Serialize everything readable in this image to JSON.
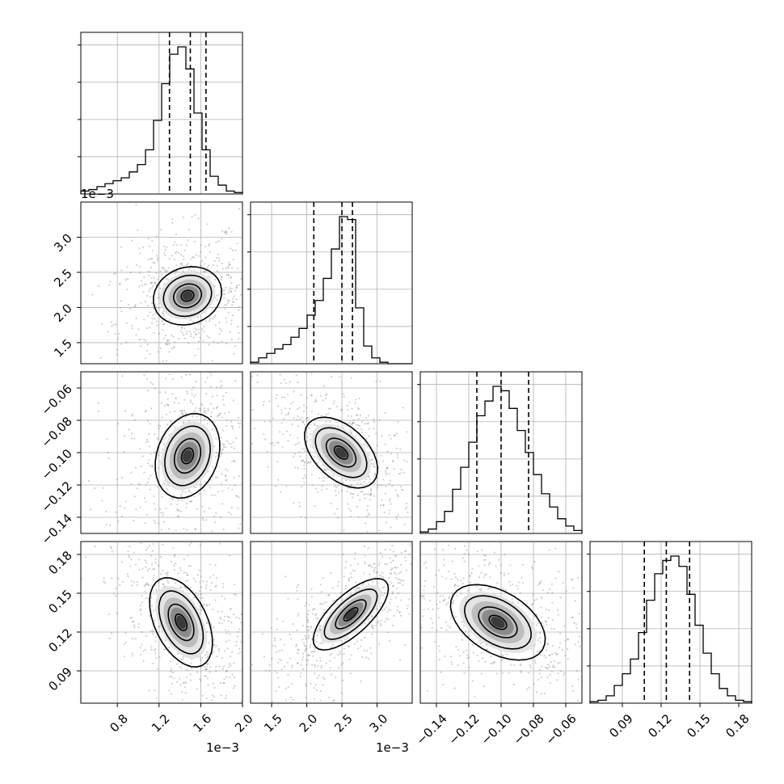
{
  "chart_data": {
    "type": "corner",
    "grid": true,
    "parameters": [
      {
        "range": [
          0.45,
          2.0
        ],
        "ticks": [
          0.8,
          1.2,
          1.6,
          2.0
        ],
        "tick_labels": [
          "0.8",
          "1.2",
          "1.6",
          "2.0"
        ],
        "offset_label": "1e−3",
        "quantiles": [
          1.3,
          1.5,
          1.65
        ],
        "hist_counts": [
          0.02,
          0.03,
          0.05,
          0.07,
          0.09,
          0.11,
          0.15,
          0.2,
          0.3,
          0.5,
          0.75,
          0.95,
          1.0,
          0.85,
          0.55,
          0.3,
          0.12,
          0.06,
          0.02,
          0.01
        ]
      },
      {
        "range": [
          1.2,
          3.5
        ],
        "ticks": [
          1.5,
          2.0,
          2.5,
          3.0
        ],
        "tick_labels": [
          "1.5",
          "2.0",
          "2.5",
          "3.0"
        ],
        "offset_label": "1e−3",
        "quantiles": [
          2.1,
          2.5,
          2.65
        ],
        "hist_counts": [
          0.01,
          0.04,
          0.07,
          0.1,
          0.13,
          0.18,
          0.24,
          0.33,
          0.43,
          0.58,
          0.78,
          1.0,
          0.98,
          0.38,
          0.12,
          0.04,
          0.01,
          0.0,
          0.0,
          0.0
        ]
      },
      {
        "range": [
          -0.15,
          -0.05
        ],
        "ticks": [
          -0.14,
          -0.12,
          -0.1,
          -0.08,
          -0.06
        ],
        "tick_labels": [
          "−0.14",
          "−0.12",
          "−0.10",
          "−0.08",
          "−0.06"
        ],
        "quantiles": [
          -0.115,
          -0.1,
          -0.083
        ],
        "hist_counts": [
          0.01,
          0.03,
          0.08,
          0.15,
          0.3,
          0.45,
          0.62,
          0.8,
          0.9,
          1.0,
          0.97,
          0.85,
          0.7,
          0.55,
          0.4,
          0.27,
          0.18,
          0.1,
          0.05,
          0.02
        ]
      },
      {
        "range": [
          0.065,
          0.19
        ],
        "ticks": [
          0.09,
          0.12,
          0.15,
          0.18
        ],
        "tick_labels": [
          "0.09",
          "0.12",
          "0.15",
          "0.18"
        ],
        "quantiles": [
          0.107,
          0.124,
          0.142
        ],
        "hist_counts": [
          0.01,
          0.02,
          0.05,
          0.12,
          0.2,
          0.3,
          0.48,
          0.7,
          0.88,
          0.97,
          1.0,
          0.93,
          0.74,
          0.53,
          0.34,
          0.2,
          0.1,
          0.05,
          0.02,
          0.01
        ]
      }
    ]
  }
}
